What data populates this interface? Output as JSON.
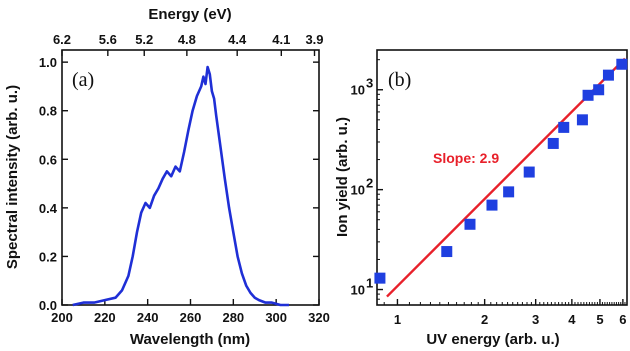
{
  "chart_data": [
    {
      "type": "line",
      "panel_label": "(a)",
      "xlabel": "Wavelength (nm)",
      "ylabel": "Spectral intensity (arb. u.)",
      "top_xlabel": "Energy (eV)",
      "xlim": [
        200,
        320
      ],
      "ylim": [
        0,
        1.05
      ],
      "xticks": [
        200,
        220,
        240,
        260,
        280,
        300,
        320
      ],
      "yticks": [
        0.0,
        0.2,
        0.4,
        0.6,
        0.8,
        1.0
      ],
      "ytick_labels": [
        "0.0",
        "0.2",
        "0.4",
        "0.6",
        "0.8",
        "1.0"
      ],
      "top_ticks": [
        {
          "label": "6.2",
          "wavelength": 200
        },
        {
          "label": "5.6",
          "wavelength": 221.4
        },
        {
          "label": "5.2",
          "wavelength": 238.4
        },
        {
          "label": "4.8",
          "wavelength": 258.3
        },
        {
          "label": "4.4",
          "wavelength": 281.8
        },
        {
          "label": "4.1",
          "wavelength": 302.4
        },
        {
          "label": "3.9",
          "wavelength": 317.9
        }
      ],
      "color": "#1f2fd6",
      "series": [
        {
          "x": [
            205,
            210,
            215,
            220,
            225,
            228,
            231,
            233,
            235,
            237,
            239,
            241,
            243,
            245,
            247,
            249,
            251,
            253,
            255,
            257,
            259,
            261,
            263,
            265,
            266,
            267,
            268,
            269,
            270,
            271,
            272,
            274,
            276,
            278,
            280,
            282,
            284,
            286,
            288,
            290,
            292,
            295,
            298,
            302,
            306
          ],
          "y": [
            0.0,
            0.01,
            0.01,
            0.02,
            0.03,
            0.06,
            0.12,
            0.2,
            0.3,
            0.38,
            0.42,
            0.4,
            0.45,
            0.48,
            0.52,
            0.55,
            0.53,
            0.57,
            0.55,
            0.63,
            0.72,
            0.8,
            0.86,
            0.9,
            0.94,
            0.91,
            0.98,
            0.95,
            0.88,
            0.85,
            0.78,
            0.65,
            0.52,
            0.4,
            0.3,
            0.2,
            0.13,
            0.08,
            0.05,
            0.03,
            0.02,
            0.01,
            0.01,
            0.0,
            0.0
          ]
        }
      ]
    },
    {
      "type": "scatter",
      "panel_label": "(b)",
      "xlabel": "UV energy (arb. u.)",
      "ylabel": "Ion yield (arb. u.)",
      "x_scale": "log",
      "y_scale": "log",
      "xlim": [
        0.85,
        6.2
      ],
      "ylim": [
        7,
        2500
      ],
      "xticks": [
        1,
        2,
        3,
        4,
        5,
        6
      ],
      "yticks": [
        10,
        100,
        1000
      ],
      "ytick_labels": [
        "10",
        "10",
        "10"
      ],
      "ytick_exponents": [
        "1",
        "2",
        "3"
      ],
      "marker_color": "#1f3fe0",
      "fit_color": "#e8202a",
      "annotation": "Slope: 2.9",
      "series": [
        {
          "x": [
            0.87,
            1.48,
            1.78,
            2.12,
            2.42,
            2.85,
            3.45,
            3.75,
            4.35,
            4.55,
            4.95,
            5.35,
            5.95
          ],
          "y": [
            13,
            24,
            45,
            70,
            95,
            150,
            290,
            420,
            500,
            880,
            1000,
            1400,
            1800
          ]
        }
      ],
      "fit": {
        "slope": 2.9,
        "x": [
          0.92,
          6.1
        ],
        "y": [
          8.5,
          2050
        ]
      }
    }
  ]
}
